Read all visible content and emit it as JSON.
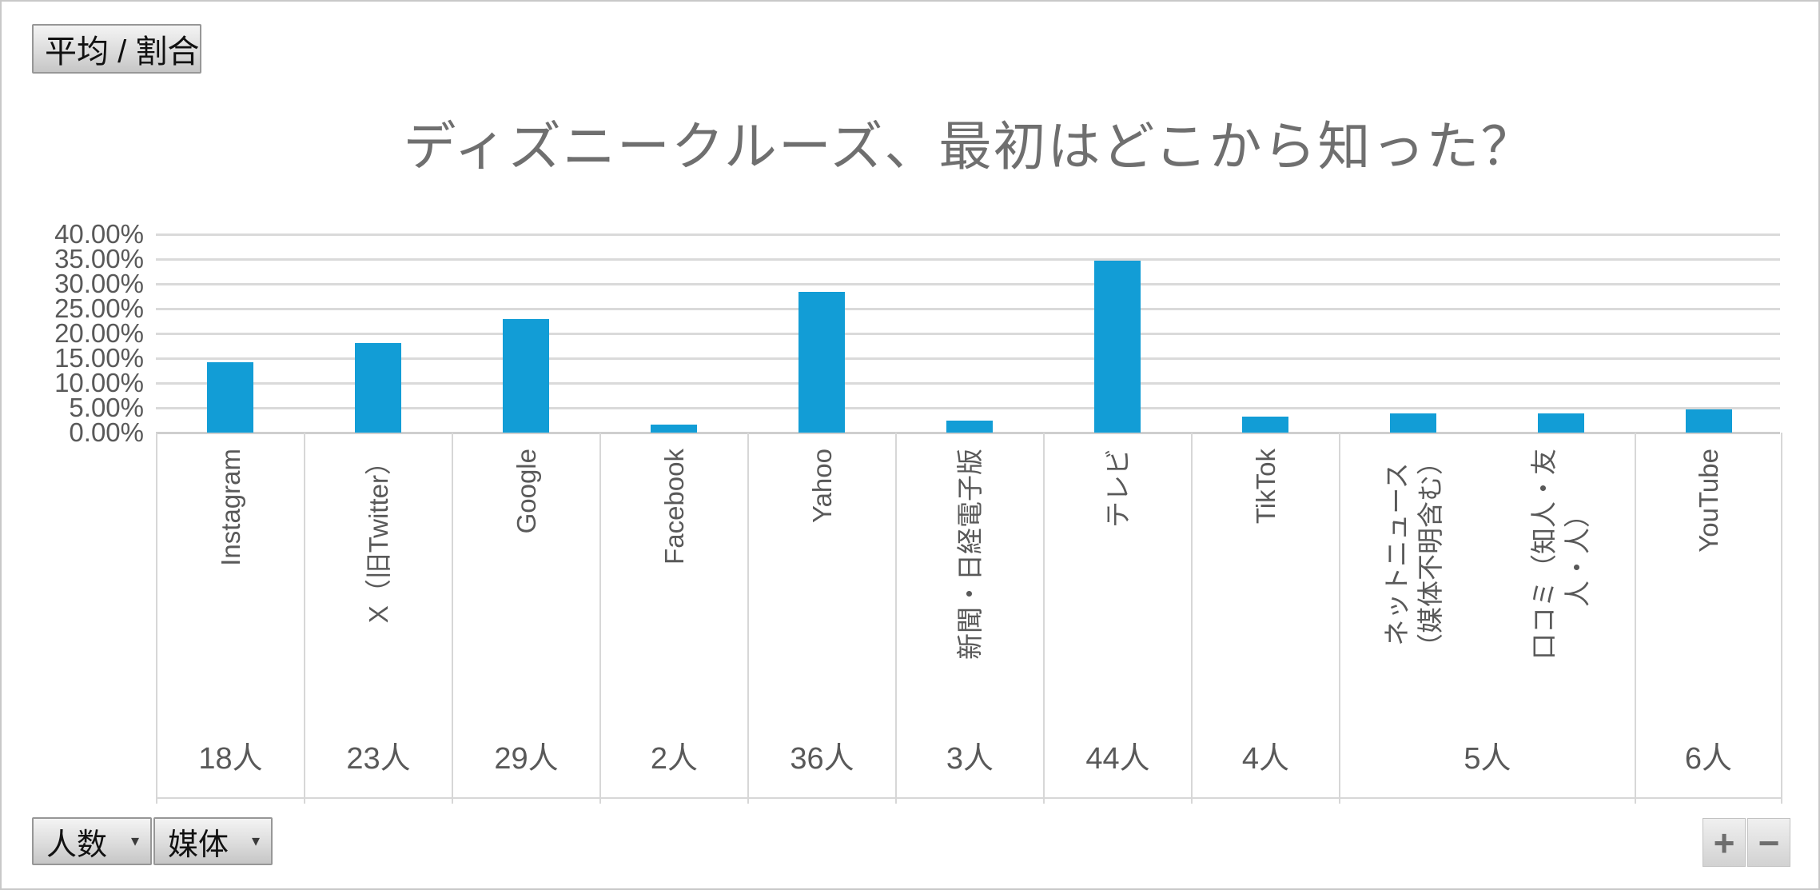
{
  "window": {
    "app_context": "pivot-chart"
  },
  "field_buttons": {
    "value_button": "平均 / 割合",
    "rows_button": "人数",
    "columns_button": "媒体",
    "dropdown_icon": "▾",
    "expand_button": "+",
    "collapse_button": "−"
  },
  "colors": {
    "bar": "#129dd6",
    "gridline": "#dadada",
    "axis_text": "#595959",
    "title_text": "#6f6f6f",
    "button_border": "#979797"
  },
  "chart_data": {
    "type": "bar",
    "title": "ディズニークルーズ、最初はどこから知った？",
    "series_name": "平均 / 割合",
    "categories": [
      "Instagram",
      "X（旧Twitter）",
      "Google",
      "Facebook",
      "Yahoo",
      "新聞・日経電子版",
      "テレビ",
      "TikTok",
      "ネットニュース（媒体不明含む）",
      "口コミ（知人・友人・人）",
      "YouTube"
    ],
    "values_percent": [
      14.17,
      18.11,
      22.83,
      1.57,
      28.35,
      2.36,
      34.65,
      3.15,
      3.94,
      3.94,
      4.72
    ],
    "counts": [
      18,
      23,
      29,
      2,
      36,
      3,
      44,
      4,
      5,
      5,
      6
    ],
    "xlabel": "",
    "ylabel": "",
    "ylim": [
      0,
      40
    ],
    "y_tick_step": 5,
    "y_ticks": [
      "40.00%",
      "35.00%",
      "30.00%",
      "25.00%",
      "20.00%",
      "15.00%",
      "10.00%",
      "5.00%",
      "0.00%"
    ],
    "grid": true,
    "legend": "none",
    "category_cells": [
      {
        "span": 1,
        "count_label": "18人",
        "labels": [
          [
            "Instagram"
          ]
        ]
      },
      {
        "span": 1,
        "count_label": "23人",
        "labels": [
          [
            "X（旧Twitter）"
          ]
        ]
      },
      {
        "span": 1,
        "count_label": "29人",
        "labels": [
          [
            "Google"
          ]
        ]
      },
      {
        "span": 1,
        "count_label": "2人",
        "labels": [
          [
            "Facebook"
          ]
        ]
      },
      {
        "span": 1,
        "count_label": "36人",
        "labels": [
          [
            "Yahoo"
          ]
        ]
      },
      {
        "span": 1,
        "count_label": "3人",
        "labels": [
          [
            "新聞・日経電子版"
          ]
        ]
      },
      {
        "span": 1,
        "count_label": "44人",
        "labels": [
          [
            "テレビ"
          ]
        ]
      },
      {
        "span": 1,
        "count_label": "4人",
        "labels": [
          [
            "TikTok"
          ]
        ]
      },
      {
        "span": 2,
        "count_label": "5人",
        "labels": [
          [
            "ネットニュース",
            "（媒体不明含む）"
          ],
          [
            "口コミ（知人・友",
            "人・人）"
          ]
        ]
      },
      {
        "span": 1,
        "count_label": "6人",
        "labels": [
          [
            "YouTube"
          ]
        ]
      }
    ]
  }
}
